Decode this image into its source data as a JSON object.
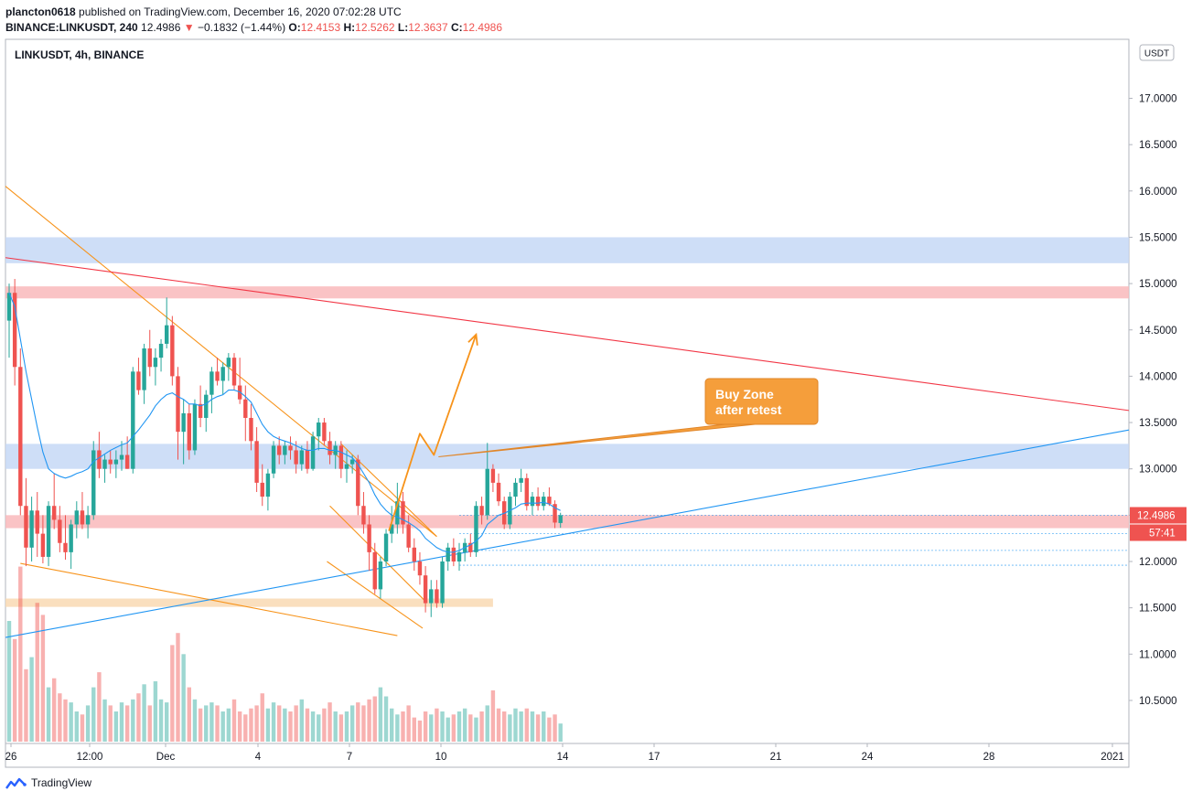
{
  "header": {
    "publisher": "plancton0618",
    "published_text": "published on TradingView.com, December 16, 2020 07:02:28 UTC",
    "symbol_full": "BINANCE:LINKUSDT, 240",
    "last": "12.4986",
    "change_arrow": "▼",
    "change": "−0.1832 (−1.44%)",
    "o_label": "O:",
    "o_value": "12.4153",
    "h_label": "H:",
    "h_value": "12.5262",
    "l_label": "L:",
    "l_value": "12.3637",
    "c_label": "C:",
    "c_value": "12.4986"
  },
  "chart_title": "LINKUSDT, 4h, BINANCE",
  "currency_button": "USDT",
  "price_label": "12.4986",
  "countdown_label": "57:41",
  "annotation": {
    "line1": "Buy Zone",
    "line2": "after retest"
  },
  "footer": {
    "brand": "TradingView"
  },
  "colors": {
    "up": "#26a69a",
    "down": "#ef5350",
    "ma": "#2196f3",
    "trend_orange": "#f7931a",
    "trend_red": "#f23645",
    "zone_blue": "#c5d8f6",
    "zone_pink": "#f9b9bb",
    "zone_orange": "#f9d9b3",
    "callout": "#f59e3b"
  },
  "chart_data": {
    "type": "candlestick",
    "x_ticks": [
      "26",
      "12:00",
      "Dec",
      "4",
      "7",
      "10",
      "14",
      "17",
      "21",
      "24",
      "28",
      "2021"
    ],
    "y_ticks": [
      "10.5000",
      "11.0000",
      "11.5000",
      "12.0000",
      "12.5000",
      "13.0000",
      "13.5000",
      "14.0000",
      "14.5000",
      "15.0000",
      "15.5000",
      "16.0000",
      "16.5000",
      "17.0000"
    ],
    "y_range": [
      10.0,
      17.35
    ],
    "x_range": [
      0,
      120
    ],
    "zones": [
      {
        "color": "blue",
        "from": 15.22,
        "to": 15.5,
        "x_end": 120
      },
      {
        "color": "pink",
        "from": 14.84,
        "to": 14.97,
        "x_end": 120
      },
      {
        "color": "blue",
        "from": 13.0,
        "to": 13.27,
        "x_end": 120
      },
      {
        "color": "pink",
        "from": 12.36,
        "to": 12.5,
        "x_end": 120
      },
      {
        "color": "orange",
        "from": 11.51,
        "to": 11.6,
        "x_end": 86
      }
    ],
    "trendlines": [
      {
        "color": "orange",
        "x1": 0,
        "y1": 16.05,
        "x2": 76,
        "y2": 12.27
      },
      {
        "color": "orange",
        "x1": 2,
        "y1": 11.98,
        "x2": 69,
        "y2": 11.2
      },
      {
        "color": "orange",
        "x1": 56.5,
        "y1": 12.0,
        "x2": 73.5,
        "y2": 11.28
      },
      {
        "color": "orange",
        "x1": 57,
        "y1": 12.6,
        "x2": 74,
        "y2": 11.57
      },
      {
        "color": "orange",
        "x1": 59,
        "y1": 13.27,
        "x2": 76,
        "y2": 12.27
      },
      {
        "color": "red",
        "x1": 0,
        "y1": 15.28,
        "x2": 120,
        "y2": 13.63
      },
      {
        "color": "blue",
        "x1": 0,
        "y1": 11.18,
        "x2": 120,
        "y2": 13.42
      }
    ],
    "projection_path": [
      [
        67.5,
        12.33
      ],
      [
        73,
        13.38
      ],
      [
        75.5,
        13.15
      ],
      [
        83,
        14.45
      ]
    ],
    "callout_anchor": [
      75.5,
      13.15
    ],
    "dotted_levels": [
      12.5,
      12.3,
      12.12,
      11.96
    ],
    "candles": [
      {
        "o": 14.6,
        "h": 15.0,
        "l": 14.2,
        "c": 14.9
      },
      {
        "o": 14.9,
        "h": 15.05,
        "l": 13.9,
        "c": 14.1
      },
      {
        "o": 14.1,
        "h": 14.3,
        "l": 12.5,
        "c": 12.6
      },
      {
        "o": 12.6,
        "h": 12.9,
        "l": 11.95,
        "c": 12.15
      },
      {
        "o": 12.15,
        "h": 12.7,
        "l": 12.0,
        "c": 12.55
      },
      {
        "o": 12.55,
        "h": 12.75,
        "l": 12.05,
        "c": 12.3
      },
      {
        "o": 12.3,
        "h": 12.5,
        "l": 11.98,
        "c": 12.05
      },
      {
        "o": 12.05,
        "h": 12.65,
        "l": 11.95,
        "c": 12.6
      },
      {
        "o": 12.6,
        "h": 12.95,
        "l": 12.35,
        "c": 12.45
      },
      {
        "o": 12.45,
        "h": 12.6,
        "l": 12.1,
        "c": 12.2
      },
      {
        "o": 12.2,
        "h": 12.5,
        "l": 12.02,
        "c": 12.1
      },
      {
        "o": 12.1,
        "h": 12.45,
        "l": 11.92,
        "c": 12.4
      },
      {
        "o": 12.4,
        "h": 12.65,
        "l": 12.25,
        "c": 12.55
      },
      {
        "o": 12.55,
        "h": 12.75,
        "l": 12.35,
        "c": 12.4
      },
      {
        "o": 12.4,
        "h": 12.6,
        "l": 12.25,
        "c": 12.5
      },
      {
        "o": 12.5,
        "h": 13.3,
        "l": 12.45,
        "c": 13.2
      },
      {
        "o": 13.2,
        "h": 13.4,
        "l": 12.9,
        "c": 13.0
      },
      {
        "o": 13.0,
        "h": 13.15,
        "l": 12.85,
        "c": 13.1
      },
      {
        "o": 13.1,
        "h": 13.2,
        "l": 12.95,
        "c": 13.05
      },
      {
        "o": 13.05,
        "h": 13.2,
        "l": 12.9,
        "c": 13.1
      },
      {
        "o": 13.1,
        "h": 13.3,
        "l": 12.98,
        "c": 13.15
      },
      {
        "o": 13.15,
        "h": 13.35,
        "l": 13.0,
        "c": 13.0
      },
      {
        "o": 13.0,
        "h": 14.1,
        "l": 12.95,
        "c": 14.05
      },
      {
        "o": 14.05,
        "h": 14.2,
        "l": 13.8,
        "c": 13.85
      },
      {
        "o": 13.85,
        "h": 14.35,
        "l": 13.7,
        "c": 14.3
      },
      {
        "o": 14.3,
        "h": 14.5,
        "l": 14.0,
        "c": 14.1
      },
      {
        "o": 14.1,
        "h": 14.3,
        "l": 13.9,
        "c": 14.2
      },
      {
        "o": 14.2,
        "h": 14.4,
        "l": 14.05,
        "c": 14.35
      },
      {
        "o": 14.35,
        "h": 14.85,
        "l": 14.3,
        "c": 14.55
      },
      {
        "o": 14.55,
        "h": 14.65,
        "l": 13.9,
        "c": 14.0
      },
      {
        "o": 14.0,
        "h": 14.1,
        "l": 13.1,
        "c": 13.4
      },
      {
        "o": 13.4,
        "h": 13.75,
        "l": 13.05,
        "c": 13.6
      },
      {
        "o": 13.6,
        "h": 13.7,
        "l": 13.1,
        "c": 13.2
      },
      {
        "o": 13.2,
        "h": 13.75,
        "l": 13.15,
        "c": 13.7
      },
      {
        "o": 13.7,
        "h": 13.9,
        "l": 13.45,
        "c": 13.55
      },
      {
        "o": 13.55,
        "h": 13.85,
        "l": 13.4,
        "c": 13.8
      },
      {
        "o": 13.8,
        "h": 14.1,
        "l": 13.6,
        "c": 14.05
      },
      {
        "o": 14.05,
        "h": 14.2,
        "l": 13.9,
        "c": 13.95
      },
      {
        "o": 13.95,
        "h": 14.15,
        "l": 13.8,
        "c": 14.1
      },
      {
        "o": 14.1,
        "h": 14.25,
        "l": 13.95,
        "c": 14.2
      },
      {
        "o": 14.2,
        "h": 14.25,
        "l": 13.85,
        "c": 13.9
      },
      {
        "o": 13.9,
        "h": 14.2,
        "l": 13.7,
        "c": 13.75
      },
      {
        "o": 13.75,
        "h": 13.9,
        "l": 13.3,
        "c": 13.55
      },
      {
        "o": 13.55,
        "h": 13.7,
        "l": 13.2,
        "c": 13.3
      },
      {
        "o": 13.3,
        "h": 13.45,
        "l": 12.75,
        "c": 12.85
      },
      {
        "o": 12.85,
        "h": 13.05,
        "l": 12.6,
        "c": 12.7
      },
      {
        "o": 12.7,
        "h": 13.0,
        "l": 12.55,
        "c": 12.95
      },
      {
        "o": 12.95,
        "h": 13.3,
        "l": 12.9,
        "c": 13.25
      },
      {
        "o": 13.25,
        "h": 13.35,
        "l": 13.05,
        "c": 13.15
      },
      {
        "o": 13.15,
        "h": 13.3,
        "l": 13.05,
        "c": 13.25
      },
      {
        "o": 13.25,
        "h": 13.35,
        "l": 13.1,
        "c": 13.2
      },
      {
        "o": 13.2,
        "h": 13.3,
        "l": 12.95,
        "c": 13.05
      },
      {
        "o": 13.05,
        "h": 13.25,
        "l": 12.98,
        "c": 13.2
      },
      {
        "o": 13.2,
        "h": 13.3,
        "l": 12.95,
        "c": 13.0
      },
      {
        "o": 13.0,
        "h": 13.4,
        "l": 12.98,
        "c": 13.35
      },
      {
        "o": 13.35,
        "h": 13.55,
        "l": 13.2,
        "c": 13.5
      },
      {
        "o": 13.5,
        "h": 13.55,
        "l": 13.25,
        "c": 13.3
      },
      {
        "o": 13.3,
        "h": 13.4,
        "l": 13.05,
        "c": 13.15
      },
      {
        "o": 13.15,
        "h": 13.3,
        "l": 13.0,
        "c": 13.25
      },
      {
        "o": 13.25,
        "h": 13.3,
        "l": 12.9,
        "c": 13.0
      },
      {
        "o": 13.0,
        "h": 13.2,
        "l": 12.85,
        "c": 13.05
      },
      {
        "o": 13.05,
        "h": 13.15,
        "l": 12.95,
        "c": 13.1
      },
      {
        "o": 13.1,
        "h": 13.15,
        "l": 12.5,
        "c": 12.6
      },
      {
        "o": 12.6,
        "h": 12.75,
        "l": 12.3,
        "c": 12.4
      },
      {
        "o": 12.4,
        "h": 12.5,
        "l": 11.9,
        "c": 12.1
      },
      {
        "o": 12.1,
        "h": 12.2,
        "l": 11.65,
        "c": 11.7
      },
      {
        "o": 11.7,
        "h": 12.05,
        "l": 11.6,
        "c": 12.0
      },
      {
        "o": 12.0,
        "h": 12.35,
        "l": 11.95,
        "c": 12.3
      },
      {
        "o": 12.3,
        "h": 12.6,
        "l": 12.2,
        "c": 12.4
      },
      {
        "o": 12.4,
        "h": 12.85,
        "l": 12.3,
        "c": 12.65
      },
      {
        "o": 12.65,
        "h": 12.75,
        "l": 12.3,
        "c": 12.4
      },
      {
        "o": 12.4,
        "h": 12.5,
        "l": 12.1,
        "c": 12.15
      },
      {
        "o": 12.15,
        "h": 12.25,
        "l": 11.9,
        "c": 12.0
      },
      {
        "o": 12.0,
        "h": 12.1,
        "l": 11.75,
        "c": 11.85
      },
      {
        "o": 11.85,
        "h": 11.95,
        "l": 11.45,
        "c": 11.55
      },
      {
        "o": 11.55,
        "h": 11.8,
        "l": 11.4,
        "c": 11.7
      },
      {
        "o": 11.7,
        "h": 11.8,
        "l": 11.5,
        "c": 11.55
      },
      {
        "o": 11.55,
        "h": 12.05,
        "l": 11.5,
        "c": 12.0
      },
      {
        "o": 12.0,
        "h": 12.2,
        "l": 11.9,
        "c": 12.15
      },
      {
        "o": 12.15,
        "h": 12.25,
        "l": 11.95,
        "c": 12.0
      },
      {
        "o": 12.0,
        "h": 12.2,
        "l": 11.9,
        "c": 12.1
      },
      {
        "o": 12.1,
        "h": 12.25,
        "l": 12.0,
        "c": 12.2
      },
      {
        "o": 12.2,
        "h": 12.3,
        "l": 12.05,
        "c": 12.1
      },
      {
        "o": 12.1,
        "h": 12.65,
        "l": 12.05,
        "c": 12.6
      },
      {
        "o": 12.6,
        "h": 12.7,
        "l": 12.4,
        "c": 12.5
      },
      {
        "o": 12.5,
        "h": 13.28,
        "l": 12.45,
        "c": 13.0
      },
      {
        "o": 13.0,
        "h": 13.05,
        "l": 12.75,
        "c": 12.85
      },
      {
        "o": 12.85,
        "h": 12.95,
        "l": 12.6,
        "c": 12.65
      },
      {
        "o": 12.65,
        "h": 12.7,
        "l": 12.35,
        "c": 12.4
      },
      {
        "o": 12.4,
        "h": 12.75,
        "l": 12.35,
        "c": 12.7
      },
      {
        "o": 12.7,
        "h": 12.9,
        "l": 12.6,
        "c": 12.85
      },
      {
        "o": 12.85,
        "h": 13.0,
        "l": 12.75,
        "c": 12.9
      },
      {
        "o": 12.9,
        "h": 12.95,
        "l": 12.55,
        "c": 12.6
      },
      {
        "o": 12.6,
        "h": 12.75,
        "l": 12.5,
        "c": 12.7
      },
      {
        "o": 12.7,
        "h": 12.8,
        "l": 12.55,
        "c": 12.6
      },
      {
        "o": 12.6,
        "h": 12.75,
        "l": 12.55,
        "c": 12.7
      },
      {
        "o": 12.7,
        "h": 12.8,
        "l": 12.6,
        "c": 12.62
      },
      {
        "o": 12.62,
        "h": 12.66,
        "l": 12.36,
        "c": 12.42
      },
      {
        "o": 12.4153,
        "h": 12.5262,
        "l": 12.3637,
        "c": 12.4986
      }
    ],
    "ma": [
      14.9,
      14.75,
      14.4,
      14.05,
      13.75,
      13.45,
      13.18,
      13.0,
      12.95,
      12.92,
      12.9,
      12.92,
      12.95,
      12.97,
      13.0,
      13.08,
      13.12,
      13.16,
      13.2,
      13.23,
      13.26,
      13.28,
      13.35,
      13.42,
      13.5,
      13.58,
      13.68,
      13.75,
      13.8,
      13.82,
      13.78,
      13.75,
      13.7,
      13.7,
      13.68,
      13.7,
      13.75,
      13.78,
      13.8,
      13.85,
      13.85,
      13.83,
      13.78,
      13.72,
      13.6,
      13.48,
      13.4,
      13.35,
      13.32,
      13.3,
      13.28,
      13.25,
      13.22,
      13.2,
      13.2,
      13.22,
      13.22,
      13.2,
      13.2,
      13.18,
      13.15,
      13.12,
      13.05,
      12.95,
      12.85,
      12.72,
      12.62,
      12.55,
      12.5,
      12.48,
      12.45,
      12.42,
      12.38,
      12.33,
      12.25,
      12.2,
      12.15,
      12.12,
      12.1,
      12.1,
      12.12,
      12.15,
      12.18,
      12.22,
      12.28,
      12.4,
      12.45,
      12.5,
      12.52,
      12.55,
      12.58,
      12.62,
      12.63,
      12.63,
      12.63,
      12.64,
      12.62,
      12.58,
      12.55
    ],
    "volume": [
      40,
      34,
      58,
      24,
      28,
      46,
      42,
      18,
      21,
      16,
      14,
      13,
      10,
      9,
      12,
      18,
      23,
      14,
      12,
      10,
      13,
      12,
      14,
      16,
      19,
      12,
      20,
      14,
      13,
      32,
      36,
      29,
      18,
      14,
      11,
      12,
      13,
      12,
      10,
      11,
      14,
      10,
      9,
      11,
      12,
      16,
      11,
      13,
      12,
      11,
      10,
      12,
      14,
      11,
      10,
      9,
      11,
      13,
      10,
      9,
      10,
      12,
      13,
      12,
      14,
      15,
      18,
      15,
      11,
      9,
      10,
      12,
      8,
      7,
      10,
      9,
      11,
      10,
      8,
      9,
      10,
      11,
      9,
      8,
      10,
      12,
      17,
      11,
      10,
      9,
      11,
      10,
      11,
      10,
      9,
      10,
      8,
      9,
      6
    ]
  }
}
